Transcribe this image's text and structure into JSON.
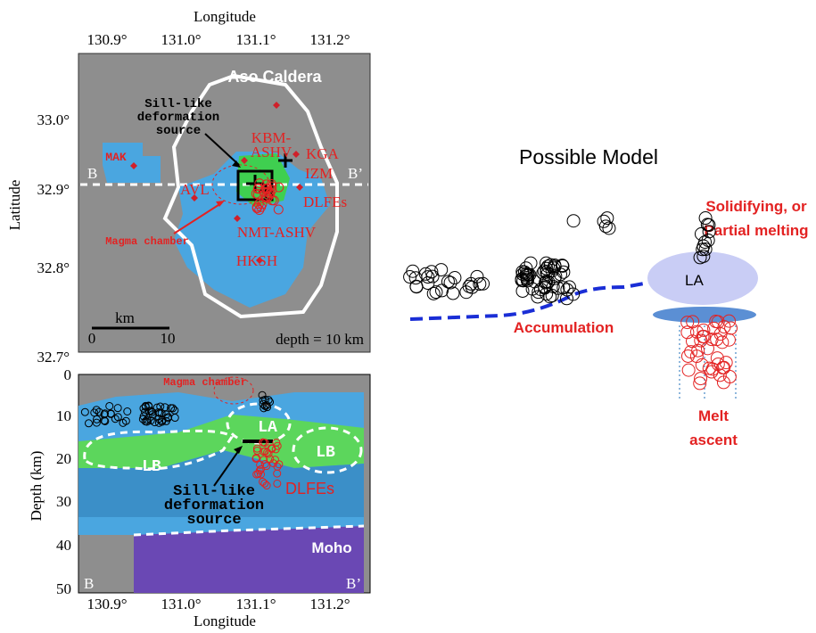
{
  "map": {
    "x_axis_title": "Longitude",
    "x_ticks": [
      "130.9°",
      "131.0°",
      "131.1°",
      "131.2°"
    ],
    "y_axis_title": "Latitude",
    "y_ticks": [
      "33.0°",
      "32.9°",
      "32.8°",
      "32.7°"
    ],
    "caldera_label": "Aso Caldera",
    "sill_label": [
      "Sill-like",
      "deformation",
      "source"
    ],
    "kbm_label": [
      "KBM-",
      "ASHV"
    ],
    "stations": [
      "MAK",
      "KGA",
      "IZM",
      "AVL",
      "NMT-ASHV",
      "HKSH"
    ],
    "dlfe_label": "DLFEs",
    "magma_label": "Magma chamber",
    "section_start": "B",
    "section_end": "B’",
    "scale_unit": "km",
    "scale_ticks": [
      "0",
      "10"
    ],
    "depth_label": "depth = 10 km"
  },
  "section": {
    "y_axis_title": "Depth (km)",
    "y_ticks": [
      "0",
      "10",
      "20",
      "30",
      "40",
      "50"
    ],
    "x_ticks": [
      "130.9°",
      "131.0°",
      "131.1°",
      "131.2°"
    ],
    "x_axis_title": "Longitude",
    "magma_label": "Magma chamber",
    "la_label": "LA",
    "lb_labels": [
      "LB",
      "LB"
    ],
    "sill_label": [
      "Sill-like",
      "deformation",
      "source"
    ],
    "dlfe_label": "DLFEs",
    "moho_label": "Moho",
    "section_start": "B",
    "section_end": "B’"
  },
  "model": {
    "title": "Possible Model",
    "top_label": [
      "Solidifying, or",
      "Partial melting"
    ],
    "la_label": "LA",
    "accumulation_label": "Accumulation",
    "ascent_label": [
      "Melt",
      "ascent"
    ]
  }
}
